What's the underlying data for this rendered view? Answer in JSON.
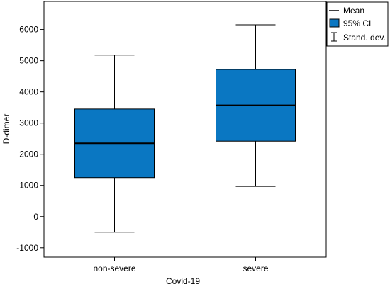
{
  "chart_data": {
    "type": "box",
    "xlabel": "Covid-19",
    "ylabel": "D-dimer",
    "ylim": [
      -1300,
      6900
    ],
    "yticks": [
      -1000,
      0,
      1000,
      2000,
      3000,
      4000,
      5000,
      6000
    ],
    "ytick_labels": [
      "-1000",
      "0",
      "1000",
      "2000",
      "3000",
      "4000",
      "5000",
      "6000"
    ],
    "grid": false,
    "legend_position": "top-right",
    "box_color": "#0a77c2",
    "categories": [
      "non-severe",
      "severe"
    ],
    "series": [
      {
        "category": "non-severe",
        "mean": 2350,
        "ci_low": 1250,
        "ci_high": 3450,
        "sd_low": -500,
        "sd_high": 5180
      },
      {
        "category": "severe",
        "mean": 3570,
        "ci_low": 2420,
        "ci_high": 4720,
        "sd_low": 970,
        "sd_high": 6150
      }
    ],
    "legend": [
      {
        "key": "mean",
        "label": "Mean"
      },
      {
        "key": "ci",
        "label": "95% CI"
      },
      {
        "key": "sd",
        "label": "Stand. dev."
      }
    ]
  }
}
